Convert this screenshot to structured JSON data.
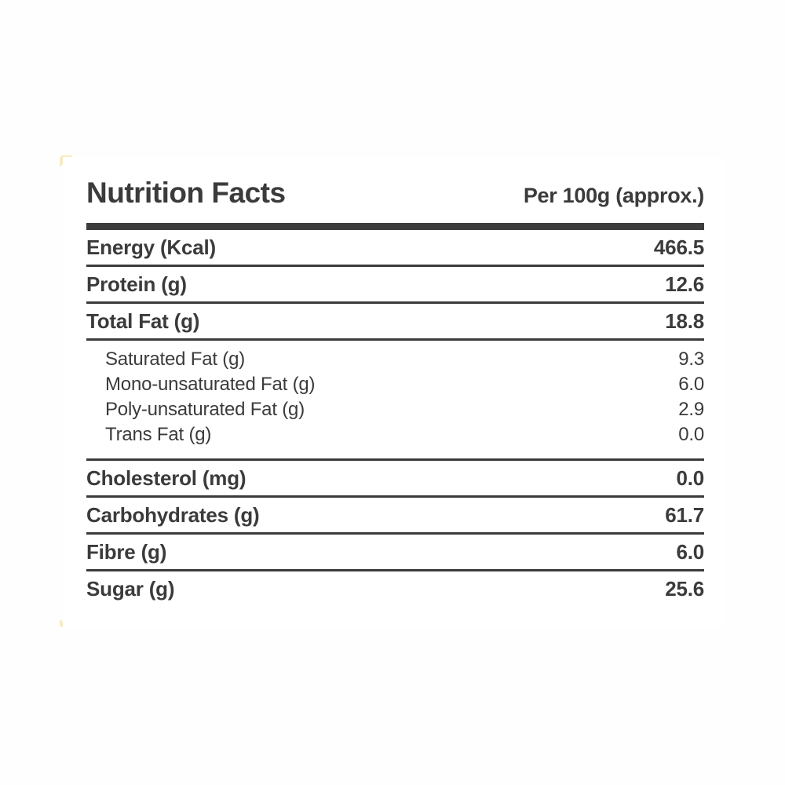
{
  "colors": {
    "text": "#3b3b3b",
    "rule": "#3b3b3b",
    "header_bar": "#3d3d3d",
    "panel_background": "#ffffff",
    "page_background": "#fefefe",
    "corner_accent": "#f8ecbe"
  },
  "label": {
    "title": "Nutrition Facts",
    "serving_header": "Per 100g (approx.)",
    "rows": [
      {
        "label": "Energy (Kcal)",
        "value": "466.5"
      },
      {
        "label": "Protein (g)",
        "value": "12.6"
      },
      {
        "label": "Total Fat (g)",
        "value": "18.8"
      },
      {
        "label": "Saturated Fat (g)",
        "value": "9.3"
      },
      {
        "label": "Mono-unsaturated Fat (g)",
        "value": "6.0"
      },
      {
        "label": "Poly-unsaturated Fat (g)",
        "value": "2.9"
      },
      {
        "label": "Trans Fat (g)",
        "value": "0.0"
      },
      {
        "label": "Cholesterol (mg)",
        "value": "0.0"
      },
      {
        "label": "Carbohydrates (g)",
        "value": "61.7"
      },
      {
        "label": "Fibre (g)",
        "value": "6.0"
      },
      {
        "label": "Sugar (g)",
        "value": "25.6"
      }
    ]
  }
}
